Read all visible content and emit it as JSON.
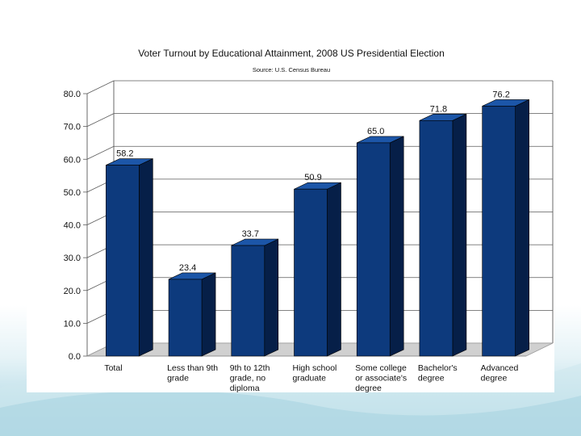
{
  "colors": {
    "bar_front": "#0d3a7d",
    "bar_side": "#061f48",
    "bar_top": "#1c56a8",
    "grid": "#5a5a5a",
    "floor": "#d0d0d0"
  },
  "chart_data": {
    "type": "bar",
    "title": "Voter Turnout by Educational Attainment, 2008 US Presidential Election",
    "subtitle": "Source: U.S. Census Bureau",
    "xlabel": "",
    "ylabel": "",
    "ylim": [
      0,
      80
    ],
    "yticks": [
      "0.0",
      "10.0",
      "20.0",
      "30.0",
      "40.0",
      "50.0",
      "60.0",
      "70.0",
      "80.0"
    ],
    "grid": true,
    "categories": [
      [
        "Total"
      ],
      [
        "Less than 9th",
        "grade"
      ],
      [
        "9th to 12th",
        "grade, no",
        "diploma"
      ],
      [
        "High school",
        "graduate"
      ],
      [
        "Some college",
        "or associate's",
        "degree"
      ],
      [
        "Bachelor's",
        "degree"
      ],
      [
        "Advanced",
        "degree"
      ]
    ],
    "values": [
      58.2,
      23.4,
      33.7,
      50.9,
      65.0,
      71.8,
      76.2
    ],
    "value_labels": [
      "58.2",
      "23.4",
      "33.7",
      "50.9",
      "65.0",
      "71.8",
      "76.2"
    ]
  }
}
